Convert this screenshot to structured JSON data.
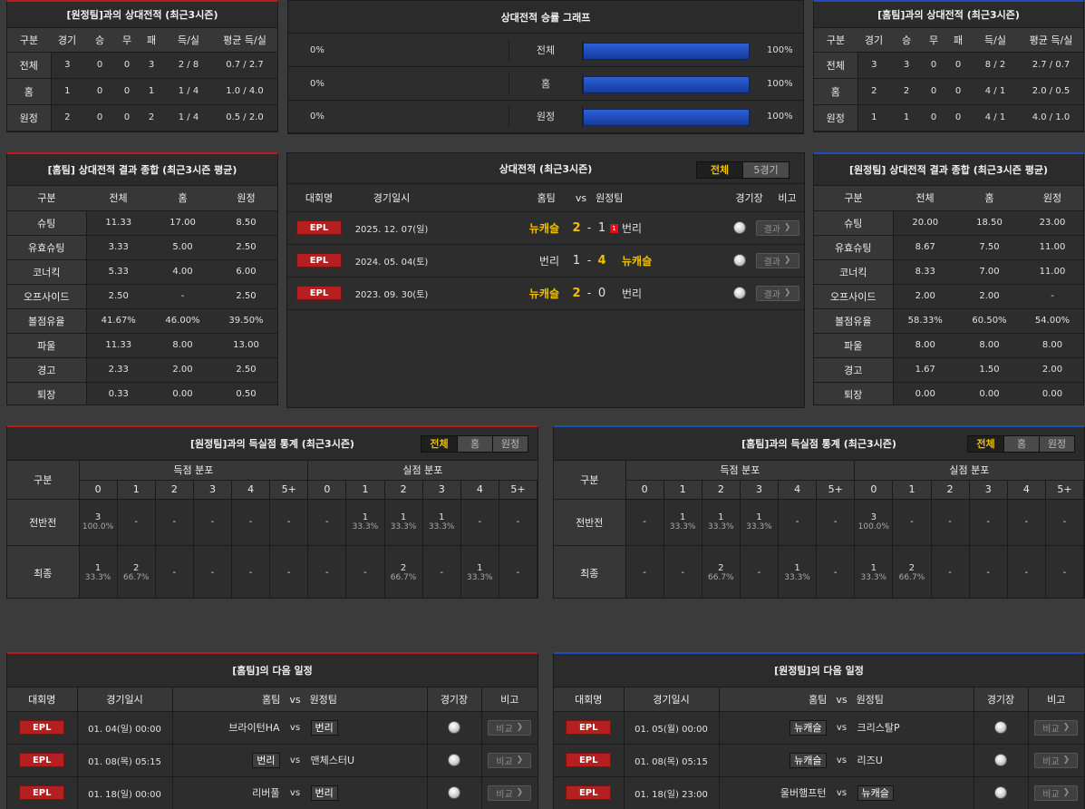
{
  "tl": {
    "title": "[원정팀]과의 상대전적 (최근3시즌)",
    "headers": [
      "구분",
      "경기",
      "승",
      "무",
      "패",
      "득/실",
      "평균 득/실"
    ],
    "rows": [
      [
        "전체",
        "3",
        "0",
        "0",
        "3",
        "2 / 8",
        "0.7 / 2.7"
      ],
      [
        "홈",
        "1",
        "0",
        "0",
        "1",
        "1 / 4",
        "1.0 / 4.0"
      ],
      [
        "원정",
        "2",
        "0",
        "0",
        "2",
        "1 / 4",
        "0.5 / 2.0"
      ]
    ]
  },
  "tr": {
    "title": "[홈팀]과의 상대전적 (최근3시즌)",
    "headers": [
      "구분",
      "경기",
      "승",
      "무",
      "패",
      "득/실",
      "평균 득/실"
    ],
    "rows": [
      [
        "전체",
        "3",
        "3",
        "0",
        "0",
        "8 / 2",
        "2.7 / 0.7"
      ],
      [
        "홈",
        "2",
        "2",
        "0",
        "0",
        "4 / 1",
        "2.0 / 0.5"
      ],
      [
        "원정",
        "1",
        "1",
        "0",
        "0",
        "4 / 1",
        "4.0 / 1.0"
      ]
    ]
  },
  "graph": {
    "title": "상대전적 승률 그래프",
    "rows": [
      {
        "left": "0%",
        "label": "전체",
        "right": "100%",
        "right_value": 1.0
      },
      {
        "left": "0%",
        "label": "홈",
        "right": "100%",
        "right_value": 1.0
      },
      {
        "left": "0%",
        "label": "원정",
        "right": "100%",
        "right_value": 1.0
      }
    ]
  },
  "ml": {
    "title": "[홈팀] 상대전적 결과 종합 (최근3시즌 평균)",
    "headers": [
      "구분",
      "전체",
      "홈",
      "원정"
    ],
    "rows": [
      [
        "슈팅",
        "11.33",
        "17.00",
        "8.50"
      ],
      [
        "유효슈팅",
        "3.33",
        "5.00",
        "2.50"
      ],
      [
        "코너킥",
        "5.33",
        "4.00",
        "6.00"
      ],
      [
        "오프사이드",
        "2.50",
        "-",
        "2.50"
      ],
      [
        "볼점유율",
        "41.67%",
        "46.00%",
        "39.50%"
      ],
      [
        "파울",
        "11.33",
        "8.00",
        "13.00"
      ],
      [
        "경고",
        "2.33",
        "2.00",
        "2.50"
      ],
      [
        "퇴장",
        "0.33",
        "0.00",
        "0.50"
      ]
    ]
  },
  "mr": {
    "title": "[원정팀] 상대전적 결과 종합 (최근3시즌 평균)",
    "headers": [
      "구분",
      "전체",
      "홈",
      "원정"
    ],
    "rows": [
      [
        "슈팅",
        "20.00",
        "18.50",
        "23.00"
      ],
      [
        "유효슈팅",
        "8.67",
        "7.50",
        "11.00"
      ],
      [
        "코너킥",
        "8.33",
        "7.00",
        "11.00"
      ],
      [
        "오프사이드",
        "2.00",
        "2.00",
        "-"
      ],
      [
        "볼점유율",
        "58.33%",
        "60.50%",
        "54.00%"
      ],
      [
        "파울",
        "8.00",
        "8.00",
        "8.00"
      ],
      [
        "경고",
        "1.67",
        "1.50",
        "2.00"
      ],
      [
        "퇴장",
        "0.00",
        "0.00",
        "0.00"
      ]
    ]
  },
  "h2h": {
    "title": "상대전적 (최근3시즌)",
    "toggle": [
      "전체",
      "5경기"
    ],
    "headers": {
      "league": "대회명",
      "date": "경기일시",
      "home": "홈팀",
      "vs": "vs",
      "away": "원정팀",
      "venue": "경기장",
      "note": "비고"
    },
    "matches": [
      {
        "league": "EPL",
        "date": "2025. 12. 07(일)",
        "home": "뉴캐슬",
        "hs": "2",
        "sep": "-",
        "as": "1",
        "card": "1",
        "away": "번리",
        "win": "home",
        "btn": "결과"
      },
      {
        "league": "EPL",
        "date": "2024. 05. 04(토)",
        "home": "번리",
        "hs": "1",
        "sep": "-",
        "as": "4",
        "card": "",
        "away": "뉴캐슬",
        "win": "away",
        "btn": "결과"
      },
      {
        "league": "EPL",
        "date": "2023. 09. 30(토)",
        "home": "뉴캐슬",
        "hs": "2",
        "sep": "-",
        "as": "0",
        "card": "",
        "away": "번리",
        "win": "home",
        "btn": "결과"
      }
    ]
  },
  "sl": {
    "title": "[원정팀]과의 득실점 통계 (최근3시즌)",
    "toggle": [
      "전체",
      "홈",
      "원정"
    ],
    "col0": "구분",
    "g1": "득점 분포",
    "g2": "실점 분포",
    "nums": [
      "0",
      "1",
      "2",
      "3",
      "4",
      "5+"
    ],
    "rows": [
      {
        "label": "전반전",
        "cells": [
          [
            "3",
            "100.0%"
          ],
          [
            "-",
            ""
          ],
          [
            "-",
            ""
          ],
          [
            "-",
            ""
          ],
          [
            "-",
            ""
          ],
          [
            "-",
            ""
          ],
          [
            "-",
            ""
          ],
          [
            "1",
            "33.3%"
          ],
          [
            "1",
            "33.3%"
          ],
          [
            "1",
            "33.3%"
          ],
          [
            "-",
            ""
          ],
          [
            "-",
            ""
          ]
        ]
      },
      {
        "label": "최종",
        "cells": [
          [
            "1",
            "33.3%"
          ],
          [
            "2",
            "66.7%"
          ],
          [
            "-",
            ""
          ],
          [
            "-",
            ""
          ],
          [
            "-",
            ""
          ],
          [
            "-",
            ""
          ],
          [
            "-",
            ""
          ],
          [
            "-",
            ""
          ],
          [
            "2",
            "66.7%"
          ],
          [
            "-",
            ""
          ],
          [
            "1",
            "33.3%"
          ],
          [
            "-",
            ""
          ]
        ]
      }
    ]
  },
  "sr": {
    "title": "[홈팀]과의 득실점 통계 (최근3시즌)",
    "toggle": [
      "전체",
      "홈",
      "원정"
    ],
    "col0": "구분",
    "g1": "득점 분포",
    "g2": "실점 분포",
    "nums": [
      "0",
      "1",
      "2",
      "3",
      "4",
      "5+"
    ],
    "rows": [
      {
        "label": "전반전",
        "cells": [
          [
            "-",
            ""
          ],
          [
            "1",
            "33.3%"
          ],
          [
            "1",
            "33.3%"
          ],
          [
            "1",
            "33.3%"
          ],
          [
            "-",
            ""
          ],
          [
            "-",
            ""
          ],
          [
            "3",
            "100.0%"
          ],
          [
            "-",
            ""
          ],
          [
            "-",
            ""
          ],
          [
            "-",
            ""
          ],
          [
            "-",
            ""
          ],
          [
            "-",
            ""
          ]
        ]
      },
      {
        "label": "최종",
        "cells": [
          [
            "-",
            ""
          ],
          [
            "-",
            ""
          ],
          [
            "2",
            "66.7%"
          ],
          [
            "-",
            ""
          ],
          [
            "1",
            "33.3%"
          ],
          [
            "-",
            ""
          ],
          [
            "1",
            "33.3%"
          ],
          [
            "2",
            "66.7%"
          ],
          [
            "-",
            ""
          ],
          [
            "-",
            ""
          ],
          [
            "-",
            ""
          ],
          [
            "-",
            ""
          ]
        ]
      }
    ]
  },
  "nl": {
    "title": "[홈팀]의 다음 일정",
    "headers": {
      "league": "대회명",
      "date": "경기일시",
      "home": "홈팀",
      "vs": "vs",
      "away": "원정팀",
      "venue": "경기장",
      "note": "비고"
    },
    "rows": [
      {
        "league": "EPL",
        "date": "01. 04(일) 00:00",
        "home": "브라이턴HA",
        "away": "번리",
        "tag": "away",
        "btn": "비교"
      },
      {
        "league": "EPL",
        "date": "01. 08(목) 05:15",
        "home": "번리",
        "away": "맨체스터U",
        "tag": "home",
        "btn": "비교"
      },
      {
        "league": "EPL",
        "date": "01. 18(일) 00:00",
        "home": "리버풀",
        "away": "번리",
        "tag": "away",
        "btn": "비교"
      }
    ]
  },
  "nr": {
    "title": "[원정팀]의 다음 일정",
    "headers": {
      "league": "대회명",
      "date": "경기일시",
      "home": "홈팀",
      "vs": "vs",
      "away": "원정팀",
      "venue": "경기장",
      "note": "비고"
    },
    "rows": [
      {
        "league": "EPL",
        "date": "01. 05(월) 00:00",
        "home": "뉴캐슬",
        "away": "크리스탈P",
        "tag": "home",
        "btn": "비교"
      },
      {
        "league": "EPL",
        "date": "01. 08(목) 05:15",
        "home": "뉴캐슬",
        "away": "리즈U",
        "tag": "home",
        "btn": "비교"
      },
      {
        "league": "EPL",
        "date": "01. 18(일) 23:00",
        "home": "울버햄프턴",
        "away": "뉴캐슬",
        "tag": "away",
        "btn": "비교"
      }
    ]
  }
}
